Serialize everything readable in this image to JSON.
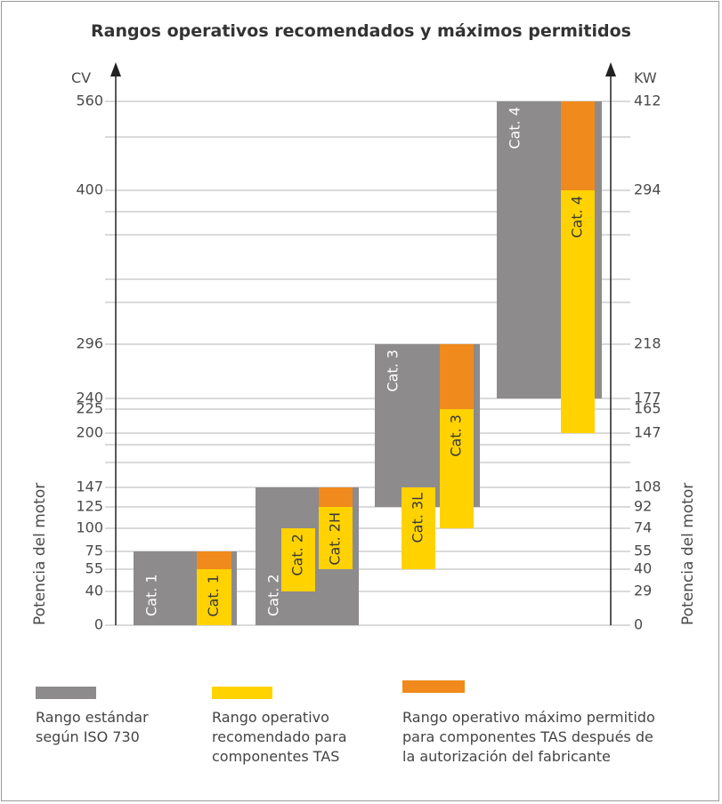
{
  "colors": {
    "standard": "#8d8b8c",
    "recommended": "#ffd200",
    "maximum": "#f08a1c",
    "grid": "#b5b5b5",
    "axis": "#222222"
  },
  "chart_data": {
    "type": "bar",
    "title": "Rangos operativos recomendados y máximos permitidos",
    "left_axis": {
      "unit": "CV",
      "label": "Potencia del motor",
      "ticks": [
        "560",
        "400",
        "296",
        "240",
        "225",
        "200",
        "147",
        "125",
        "100",
        "75",
        "55",
        "40",
        "0"
      ]
    },
    "right_axis": {
      "unit": "KW",
      "label": "Potencia del motor",
      "ticks": [
        "412",
        "294",
        "218",
        "177",
        "165",
        "147",
        "108",
        "92",
        "74",
        "55",
        "40",
        "29",
        "0"
      ]
    },
    "grid": true,
    "bars": [
      {
        "label": "Cat. 1",
        "kind": "standard",
        "range_cv": [
          0,
          75
        ]
      },
      {
        "label": "Cat. 1",
        "kind": "recommended",
        "range_cv": [
          0,
          55
        ],
        "max_cv": 75
      },
      {
        "label": "Cat. 2",
        "kind": "standard",
        "range_cv": [
          0,
          147
        ]
      },
      {
        "label": "Cat. 2",
        "kind": "recommended",
        "range_cv": [
          40,
          100
        ]
      },
      {
        "label": "Cat. 2H",
        "kind": "recommended",
        "range_cv": [
          55,
          125
        ],
        "max_cv": 147
      },
      {
        "label": "Cat. 3",
        "kind": "standard",
        "range_cv": [
          125,
          296
        ]
      },
      {
        "label": "Cat. 3L",
        "kind": "recommended",
        "range_cv": [
          55,
          147
        ]
      },
      {
        "label": "Cat. 3",
        "kind": "recommended",
        "range_cv": [
          100,
          225
        ],
        "max_cv": 296
      },
      {
        "label": "Cat. 4",
        "kind": "standard",
        "range_cv": [
          240,
          560
        ]
      },
      {
        "label": "Cat. 4",
        "kind": "recommended",
        "range_cv": [
          200,
          400
        ],
        "max_cv": 560
      }
    ],
    "legend": [
      {
        "kind": "standard",
        "text": "Rango estándar\nsegún ISO 730"
      },
      {
        "kind": "recommended",
        "text": "Rango operativo\nrecomendado para\ncomponentes TAS"
      },
      {
        "kind": "maximum",
        "text": "Rango operativo máximo permitido\npara componentes TAS después de\nla autorización del fabricante"
      }
    ]
  }
}
